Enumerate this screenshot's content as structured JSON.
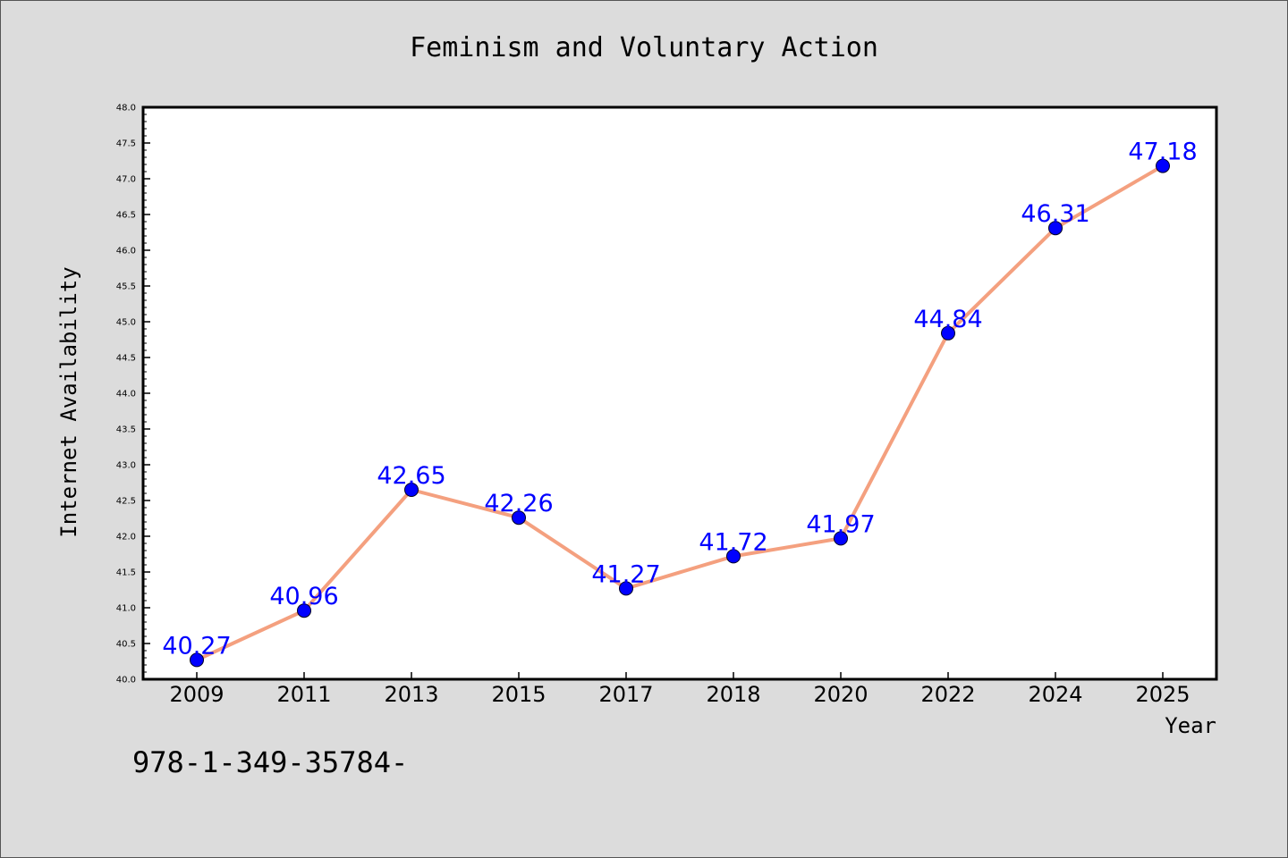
{
  "chart_data": {
    "type": "line",
    "title": "Feminism and Voluntary Action",
    "xlabel": "Year",
    "ylabel": "Internet Availability",
    "categories": [
      "2009",
      "2011",
      "2013",
      "2015",
      "2017",
      "2018",
      "2020",
      "2022",
      "2024",
      "2025"
    ],
    "series": [
      {
        "values": [
          40.27,
          40.96,
          42.65,
          42.26,
          41.27,
          41.72,
          41.97,
          44.84,
          46.31,
          47.18
        ]
      }
    ],
    "data_labels": [
      "40.27",
      "40.96",
      "42.65",
      "42.26",
      "41.27",
      "41.72",
      "41.97",
      "44.84",
      "46.31",
      "47.18"
    ],
    "ylim": [
      40.0,
      48.0
    ],
    "yticks": [
      "40.0",
      "40.5",
      "41.0",
      "41.5",
      "42.0",
      "42.5",
      "43.0",
      "43.5",
      "44.0",
      "44.5",
      "45.0",
      "45.5",
      "46.0",
      "46.5",
      "47.0",
      "47.5",
      "48.0"
    ],
    "grid": false,
    "line_color": "#f4a07f",
    "marker_color": "#0000ff",
    "label_color": "#0000ff"
  },
  "footer_text": "978-1-349-35784-"
}
